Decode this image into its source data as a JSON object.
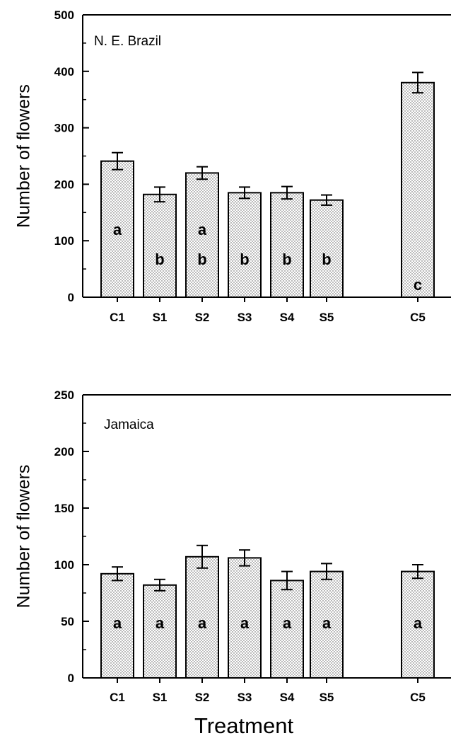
{
  "chart_data": [
    {
      "type": "bar",
      "title": "N. E. Brazil",
      "ylabel": "Number of flowers",
      "xlabel": "",
      "ylim": [
        0,
        500
      ],
      "yticks": [
        0,
        100,
        200,
        300,
        400,
        500
      ],
      "categories": [
        "C1",
        "S1",
        "S2",
        "S3",
        "S4",
        "S5",
        "C5"
      ],
      "values": [
        241,
        182,
        220,
        185,
        185,
        172,
        380
      ],
      "errors": [
        15,
        13,
        11,
        10,
        11,
        9,
        18
      ],
      "significance": [
        [
          "a"
        ],
        [
          "b"
        ],
        [
          "a",
          "b"
        ],
        [
          "b"
        ],
        [
          "b"
        ],
        [
          "b"
        ],
        [
          "c"
        ]
      ],
      "grid": false,
      "bar_pattern": "stippled"
    },
    {
      "type": "bar",
      "title": "Jamaica",
      "ylabel": "Number of flowers",
      "xlabel": "Treatment",
      "ylim": [
        0,
        250
      ],
      "yticks": [
        0,
        50,
        100,
        150,
        200,
        250
      ],
      "categories": [
        "C1",
        "S1",
        "S2",
        "S3",
        "S4",
        "S5",
        "C5"
      ],
      "values": [
        92,
        82,
        107,
        106,
        86,
        94,
        94
      ],
      "errors": [
        6,
        5,
        10,
        7,
        8,
        7,
        6
      ],
      "significance": [
        [
          "a"
        ],
        [
          "a"
        ],
        [
          "a"
        ],
        [
          "a"
        ],
        [
          "a"
        ],
        [
          "a"
        ],
        [
          "a"
        ]
      ],
      "grid": false,
      "bar_pattern": "stippled"
    }
  ]
}
